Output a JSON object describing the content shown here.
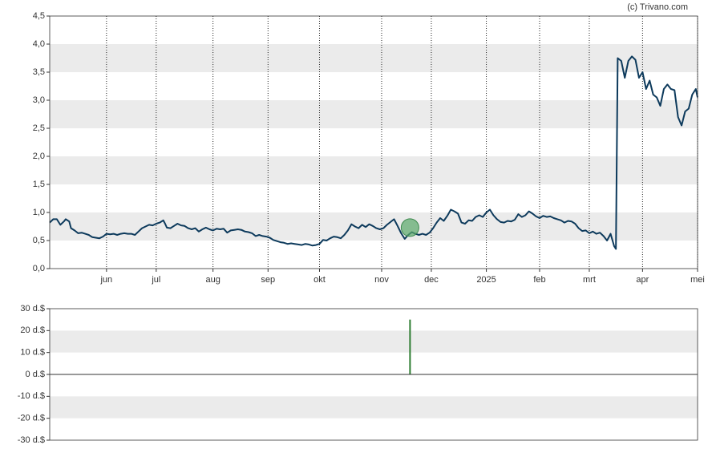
{
  "chart_data": [
    {
      "type": "line",
      "source": "(c) Trivano.com",
      "color": "#0d3a5c",
      "grid": true,
      "x": [
        0,
        2,
        4,
        6,
        8,
        9,
        11,
        12,
        14,
        16,
        18,
        20,
        22,
        24,
        26,
        28,
        30,
        32,
        34,
        36,
        38,
        40,
        42,
        44,
        46,
        48,
        50,
        52,
        54,
        56,
        58,
        60,
        62,
        64,
        65,
        66,
        68,
        70,
        72,
        74,
        76,
        78,
        80,
        82,
        84,
        86,
        88,
        90,
        92,
        94,
        96,
        98,
        100,
        102,
        104,
        106,
        108,
        110,
        112,
        114,
        116,
        118,
        120,
        122,
        124,
        126,
        128,
        130,
        132,
        134,
        136,
        138,
        140,
        142,
        144,
        146,
        148,
        150,
        152,
        154,
        156,
        158,
        160,
        162,
        164,
        166,
        168,
        170,
        172,
        174,
        176,
        178,
        180,
        182,
        184,
        186,
        188,
        190,
        192,
        194,
        196,
        198,
        200,
        202,
        204,
        206,
        208,
        210,
        212,
        214,
        216,
        218,
        220,
        222,
        224,
        226,
        228,
        230,
        232,
        234,
        236,
        238,
        240,
        242,
        244,
        246,
        248,
        250,
        252,
        254,
        256,
        258,
        260,
        262,
        264,
        266,
        268,
        270,
        272,
        274,
        276,
        278,
        280,
        282,
        284,
        286,
        288,
        290,
        292,
        294,
        296,
        298,
        300,
        302,
        304,
        306,
        308,
        310,
        312,
        314,
        316,
        318,
        319,
        320,
        322,
        324,
        326,
        328,
        330,
        332,
        334,
        336,
        338,
        340,
        342,
        344,
        346,
        348,
        350,
        352,
        354,
        356,
        358,
        360,
        362,
        364,
        365
      ],
      "values": [
        0.82,
        0.88,
        0.88,
        0.78,
        0.84,
        0.88,
        0.84,
        0.72,
        0.68,
        0.63,
        0.64,
        0.62,
        0.6,
        0.56,
        0.55,
        0.54,
        0.57,
        0.62,
        0.61,
        0.62,
        0.6,
        0.62,
        0.63,
        0.62,
        0.62,
        0.6,
        0.66,
        0.72,
        0.75,
        0.78,
        0.77,
        0.8,
        0.82,
        0.86,
        0.8,
        0.73,
        0.72,
        0.76,
        0.8,
        0.77,
        0.76,
        0.72,
        0.7,
        0.72,
        0.66,
        0.7,
        0.73,
        0.7,
        0.68,
        0.71,
        0.7,
        0.71,
        0.64,
        0.68,
        0.69,
        0.7,
        0.69,
        0.66,
        0.65,
        0.63,
        0.58,
        0.6,
        0.58,
        0.57,
        0.55,
        0.51,
        0.49,
        0.47,
        0.46,
        0.44,
        0.45,
        0.44,
        0.43,
        0.42,
        0.44,
        0.43,
        0.41,
        0.42,
        0.44,
        0.51,
        0.5,
        0.54,
        0.57,
        0.56,
        0.54,
        0.6,
        0.68,
        0.79,
        0.75,
        0.72,
        0.78,
        0.74,
        0.79,
        0.76,
        0.72,
        0.7,
        0.72,
        0.78,
        0.83,
        0.88,
        0.76,
        0.63,
        0.53,
        0.6,
        0.65,
        0.62,
        0.6,
        0.62,
        0.6,
        0.64,
        0.72,
        0.82,
        0.9,
        0.85,
        0.94,
        1.05,
        1.02,
        0.98,
        0.82,
        0.8,
        0.86,
        0.85,
        0.92,
        0.95,
        0.92,
        1.0,
        1.05,
        0.95,
        0.88,
        0.83,
        0.82,
        0.85,
        0.84,
        0.87,
        0.97,
        0.92,
        0.95,
        1.02,
        0.98,
        0.93,
        0.9,
        0.94,
        0.92,
        0.93,
        0.9,
        0.88,
        0.86,
        0.82,
        0.85,
        0.84,
        0.8,
        0.72,
        0.67,
        0.68,
        0.63,
        0.66,
        0.62,
        0.64,
        0.58,
        0.5,
        0.62,
        0.4,
        0.35,
        3.75,
        3.7,
        3.4,
        3.7,
        3.78,
        3.72,
        3.4,
        3.5,
        3.2,
        3.35,
        3.1,
        3.05,
        2.9,
        3.2,
        3.28,
        3.2,
        3.18,
        2.7,
        2.55,
        2.8,
        2.85,
        3.1,
        3.2,
        3.05
      ],
      "markers": {
        "x": [
          203
        ],
        "values": [
          0.73
        ],
        "color": "#5aa86a"
      },
      "xlim": [
        0,
        365
      ],
      "xticks": [
        {
          "value": 32,
          "label": "jun"
        },
        {
          "value": 60,
          "label": "jul"
        },
        {
          "value": 92,
          "label": "aug"
        },
        {
          "value": 123,
          "label": "sep"
        },
        {
          "value": 152,
          "label": "okt"
        },
        {
          "value": 187,
          "label": "nov"
        },
        {
          "value": 215,
          "label": "dec"
        },
        {
          "value": 246,
          "label": "2025"
        },
        {
          "value": 276,
          "label": "feb"
        },
        {
          "value": 304,
          "label": "mrt"
        },
        {
          "value": 334,
          "label": "apr"
        },
        {
          "value": 365,
          "label": "mei"
        }
      ],
      "ylim": [
        0,
        4.5
      ],
      "yticks": [
        {
          "value": 0,
          "label": "0,0"
        },
        {
          "value": 0.5,
          "label": "0,5"
        },
        {
          "value": 1,
          "label": "1,0"
        },
        {
          "value": 1.5,
          "label": "1,5"
        },
        {
          "value": 2,
          "label": "2,0"
        },
        {
          "value": 2.5,
          "label": "2,5"
        },
        {
          "value": 3,
          "label": "3,0"
        },
        {
          "value": 3.5,
          "label": "3,5"
        },
        {
          "value": 4,
          "label": "4,0"
        },
        {
          "value": 4.5,
          "label": "4,5"
        }
      ]
    },
    {
      "type": "bar",
      "color": "#2e7d32",
      "grid": true,
      "x": [
        203
      ],
      "values": [
        25
      ],
      "xlim": [
        0,
        365
      ],
      "ylim": [
        -30,
        30
      ],
      "yticks": [
        {
          "value": -30,
          "label": "-30 d.$"
        },
        {
          "value": -20,
          "label": "-20 d.$"
        },
        {
          "value": -10,
          "label": "-10 d.$"
        },
        {
          "value": 0,
          "label": "0 d.$"
        },
        {
          "value": 10,
          "label": "10 d.$"
        },
        {
          "value": 20,
          "label": "20 d.$"
        },
        {
          "value": 30,
          "label": "30 d.$"
        }
      ]
    }
  ]
}
